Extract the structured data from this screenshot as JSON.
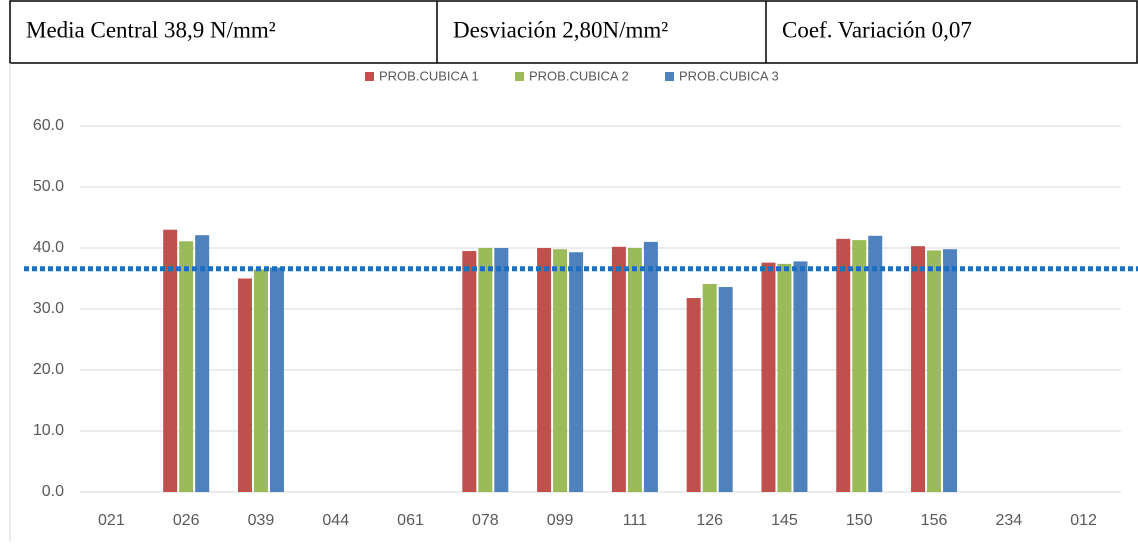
{
  "header": {
    "cells": [
      "Media Central 38,9 N/mm²",
      "Desviación 2,80N/mm²",
      "Coef. Variación 0,07"
    ]
  },
  "chart_data": {
    "type": "bar",
    "categories": [
      "021",
      "026",
      "039",
      "044",
      "061",
      "078",
      "099",
      "111",
      "126",
      "145",
      "150",
      "156",
      "234",
      "012"
    ],
    "series": [
      {
        "name": "PROB.CUBICA 1",
        "color": "#c0504d",
        "values": [
          null,
          43.0,
          35.0,
          null,
          null,
          39.5,
          40.0,
          40.2,
          31.8,
          37.6,
          41.5,
          40.3,
          null,
          null
        ]
      },
      {
        "name": "PROB.CUBICA 2",
        "color": "#9bbb59",
        "values": [
          null,
          41.1,
          36.5,
          null,
          null,
          40.0,
          39.8,
          40.0,
          34.1,
          37.4,
          41.3,
          39.6,
          null,
          null
        ]
      },
      {
        "name": "PROB.CUBICA 3",
        "color": "#4f81bd",
        "values": [
          null,
          42.1,
          36.8,
          null,
          null,
          40.0,
          39.3,
          41.0,
          33.6,
          37.8,
          42.0,
          39.8,
          null,
          null
        ]
      }
    ],
    "ylim": [
      0,
      60
    ],
    "yticks": [
      {
        "value": 0,
        "label": "0.0"
      },
      {
        "value": 10,
        "label": "10.0"
      },
      {
        "value": 20,
        "label": "20.0"
      },
      {
        "value": 30,
        "label": "30.0"
      },
      {
        "value": 40,
        "label": "40.0"
      },
      {
        "value": 50,
        "label": "50.0"
      },
      {
        "value": 60,
        "label": "60.0"
      }
    ],
    "grid": true,
    "legend": "top",
    "reference_line": {
      "value": 36.6,
      "color": "#1a6fc0"
    }
  }
}
